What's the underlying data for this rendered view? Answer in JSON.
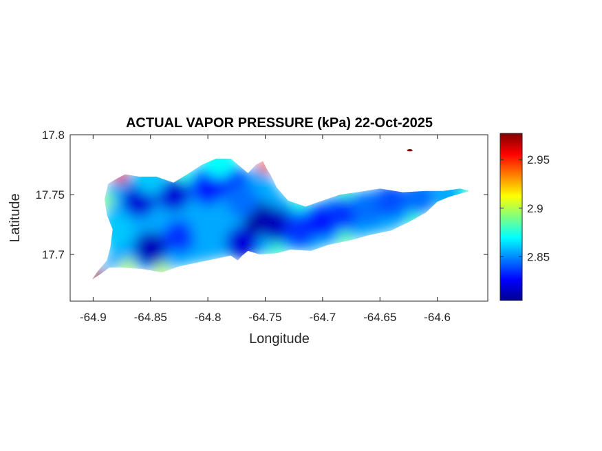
{
  "chart_data": {
    "type": "heatmap",
    "title": "ACTUAL VAPOR PRESSURE (kPa) 22-Oct-2025",
    "xlabel": "Longitude",
    "ylabel": "Latitude",
    "xlim": [
      -64.92,
      -64.556
    ],
    "ylim": [
      17.661,
      17.8
    ],
    "x_ticks": [
      -64.9,
      -64.85,
      -64.8,
      -64.75,
      -64.7,
      -64.65,
      -64.6
    ],
    "x_tick_labels": [
      "-64.9",
      "-64.85",
      "-64.8",
      "-64.75",
      "-64.7",
      "-64.65",
      "-64.6"
    ],
    "y_ticks": [
      17.7,
      17.75,
      17.8
    ],
    "y_tick_labels": [
      "17.7",
      "17.75",
      "17.8"
    ],
    "colorbar": {
      "colormap": "jet",
      "range": [
        2.805,
        2.977
      ],
      "ticks": [
        2.85,
        2.9,
        2.95
      ],
      "tick_labels": [
        "2.85",
        "2.9",
        "2.95"
      ]
    },
    "grid": false,
    "island_outline": [
      [
        -64.901,
        17.679
      ],
      [
        -64.893,
        17.684
      ],
      [
        -64.886,
        17.689
      ],
      [
        -64.875,
        17.689
      ],
      [
        -64.858,
        17.688
      ],
      [
        -64.84,
        17.685
      ],
      [
        -64.825,
        17.69
      ],
      [
        -64.81,
        17.693
      ],
      [
        -64.795,
        17.696
      ],
      [
        -64.78,
        17.699
      ],
      [
        -64.774,
        17.695
      ],
      [
        -64.77,
        17.699
      ],
      [
        -64.765,
        17.703
      ],
      [
        -64.755,
        17.7
      ],
      [
        -64.74,
        17.701
      ],
      [
        -64.728,
        17.704
      ],
      [
        -64.71,
        17.703
      ],
      [
        -64.695,
        17.708
      ],
      [
        -64.675,
        17.712
      ],
      [
        -64.66,
        17.716
      ],
      [
        -64.64,
        17.72
      ],
      [
        -64.625,
        17.727
      ],
      [
        -64.61,
        17.735
      ],
      [
        -64.6,
        17.744
      ],
      [
        -64.59,
        17.748
      ],
      [
        -64.572,
        17.753
      ],
      [
        -64.58,
        17.755
      ],
      [
        -64.595,
        17.753
      ],
      [
        -64.61,
        17.753
      ],
      [
        -64.63,
        17.752
      ],
      [
        -64.65,
        17.755
      ],
      [
        -64.67,
        17.752
      ],
      [
        -64.685,
        17.75
      ],
      [
        -64.7,
        17.745
      ],
      [
        -64.715,
        17.74
      ],
      [
        -64.73,
        17.745
      ],
      [
        -64.74,
        17.756
      ],
      [
        -64.745,
        17.766
      ],
      [
        -64.749,
        17.772
      ],
      [
        -64.752,
        17.778
      ],
      [
        -64.758,
        17.775
      ],
      [
        -64.765,
        17.768
      ],
      [
        -64.78,
        17.78
      ],
      [
        -64.793,
        17.78
      ],
      [
        -64.805,
        17.775
      ],
      [
        -64.818,
        17.767
      ],
      [
        -64.83,
        17.76
      ],
      [
        -64.845,
        17.765
      ],
      [
        -64.86,
        17.765
      ],
      [
        -64.872,
        17.767
      ],
      [
        -64.88,
        17.763
      ],
      [
        -64.887,
        17.759
      ],
      [
        -64.89,
        17.746
      ],
      [
        -64.888,
        17.733
      ],
      [
        -64.883,
        17.721
      ],
      [
        -64.885,
        17.706
      ],
      [
        -64.888,
        17.695
      ],
      [
        -64.896,
        17.686
      ]
    ],
    "field_samples": [
      {
        "lon": -64.86,
        "lat": 17.745,
        "value": 2.82
      },
      {
        "lon": -64.83,
        "lat": 17.75,
        "value": 2.82
      },
      {
        "lon": -64.85,
        "lat": 17.705,
        "value": 2.815
      },
      {
        "lon": -64.825,
        "lat": 17.715,
        "value": 2.835
      },
      {
        "lon": -64.8,
        "lat": 17.755,
        "value": 2.83
      },
      {
        "lon": -64.78,
        "lat": 17.76,
        "value": 2.835
      },
      {
        "lon": -64.8,
        "lat": 17.72,
        "value": 2.855
      },
      {
        "lon": -64.77,
        "lat": 17.71,
        "value": 2.82
      },
      {
        "lon": -64.755,
        "lat": 17.73,
        "value": 2.81
      },
      {
        "lon": -64.74,
        "lat": 17.725,
        "value": 2.815
      },
      {
        "lon": -64.72,
        "lat": 17.72,
        "value": 2.835
      },
      {
        "lon": -64.7,
        "lat": 17.728,
        "value": 2.83
      },
      {
        "lon": -64.68,
        "lat": 17.735,
        "value": 2.835
      },
      {
        "lon": -64.66,
        "lat": 17.738,
        "value": 2.845
      },
      {
        "lon": -64.64,
        "lat": 17.745,
        "value": 2.84
      },
      {
        "lon": -64.615,
        "lat": 17.748,
        "value": 2.845
      },
      {
        "lon": -64.59,
        "lat": 17.751,
        "value": 2.855
      },
      {
        "lon": -64.88,
        "lat": 17.72,
        "value": 2.86
      },
      {
        "lon": -64.87,
        "lat": 17.69,
        "value": 2.9
      },
      {
        "lon": -64.888,
        "lat": 17.745,
        "value": 2.89
      },
      {
        "lon": -64.876,
        "lat": 17.765,
        "value": 2.96
      },
      {
        "lon": -64.75,
        "lat": 17.774,
        "value": 2.94
      },
      {
        "lon": -64.895,
        "lat": 17.681,
        "value": 2.975
      },
      {
        "lon": -64.84,
        "lat": 17.687,
        "value": 2.9
      },
      {
        "lon": -64.74,
        "lat": 17.703,
        "value": 2.88
      },
      {
        "lon": -64.68,
        "lat": 17.713,
        "value": 2.885
      },
      {
        "lon": -64.62,
        "lat": 17.728,
        "value": 2.88
      },
      {
        "lon": -64.575,
        "lat": 17.753,
        "value": 2.875
      },
      {
        "lon": -64.72,
        "lat": 17.743,
        "value": 2.875
      },
      {
        "lon": -64.68,
        "lat": 17.752,
        "value": 2.88
      },
      {
        "lon": -64.79,
        "lat": 17.778,
        "value": 2.87
      },
      {
        "lon": -64.82,
        "lat": 17.766,
        "value": 2.875
      },
      {
        "lon": -64.85,
        "lat": 17.764,
        "value": 2.86
      },
      {
        "lon": -64.77,
        "lat": 17.745,
        "value": 2.845
      }
    ],
    "isolated_points": [
      {
        "lon": -64.624,
        "lat": 17.787,
        "value": 2.977
      }
    ]
  }
}
